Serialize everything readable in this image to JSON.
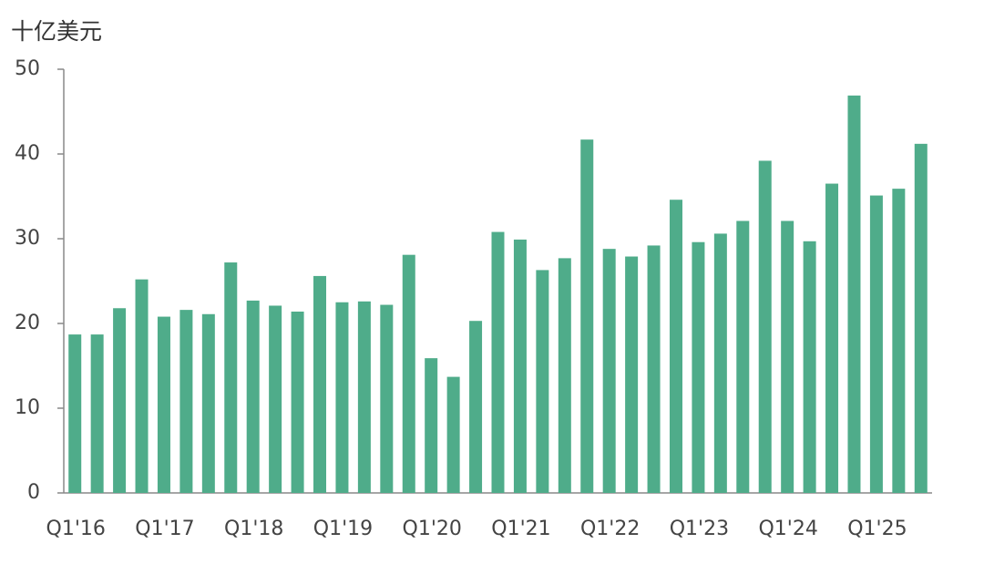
{
  "chart_data": {
    "type": "bar",
    "title": "十亿美元",
    "categories": [
      "Q1'16",
      null,
      null,
      null,
      "Q1'17",
      null,
      null,
      null,
      "Q1'18",
      null,
      null,
      null,
      "Q1'19",
      null,
      null,
      null,
      "Q1'20",
      null,
      null,
      null,
      "Q1'21",
      null,
      null,
      null,
      "Q1'22",
      null,
      null,
      null,
      "Q1'23",
      null,
      null,
      null,
      "Q1'24",
      null,
      null,
      null,
      "Q1'25",
      null,
      null
    ],
    "values": [
      18.7,
      18.7,
      21.8,
      25.2,
      20.8,
      21.6,
      21.1,
      27.2,
      22.7,
      22.1,
      21.4,
      25.6,
      22.5,
      22.6,
      22.2,
      28.1,
      15.9,
      13.7,
      20.3,
      30.8,
      29.9,
      26.3,
      27.7,
      41.7,
      28.8,
      27.9,
      29.2,
      34.6,
      29.6,
      30.6,
      32.1,
      39.2,
      32.1,
      29.7,
      36.5,
      46.9,
      35.1,
      35.9,
      41.2
    ],
    "color": "#4fac8a",
    "ylim": [
      0,
      50
    ],
    "yticks": [
      0,
      10,
      20,
      30,
      40,
      50
    ],
    "grid": false
  }
}
